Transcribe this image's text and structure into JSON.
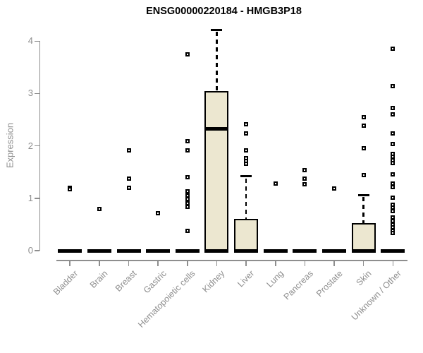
{
  "chart_data": {
    "type": "boxplot",
    "title": "ENSG00000220184 - HMGB3P18",
    "ylabel": "Expression",
    "xlabel": "",
    "ylim": [
      0,
      4.3
    ],
    "yticks": [
      0,
      1,
      2,
      3,
      4
    ],
    "grid": false,
    "legend": "none",
    "categories": [
      "Bladder",
      "Brain",
      "Breast",
      "Gastric",
      "Hematopoietic cells",
      "Kidney",
      "Liver",
      "Lung",
      "Pancreas",
      "Prostate",
      "Skin",
      "Unknown / Other"
    ],
    "boxes": [
      {
        "category": "Bladder",
        "whisker_low": 0,
        "q1": 0,
        "median": 0,
        "q3": 0,
        "whisker_high": 0,
        "outliers": [
          1.2,
          1.17
        ]
      },
      {
        "category": "Brain",
        "whisker_low": 0,
        "q1": 0,
        "median": 0,
        "q3": 0,
        "whisker_high": 0,
        "outliers": [
          0.8
        ]
      },
      {
        "category": "Breast",
        "whisker_low": 0,
        "q1": 0,
        "median": 0,
        "q3": 0,
        "whisker_high": 0,
        "outliers": [
          1.92,
          1.38,
          1.2
        ]
      },
      {
        "category": "Gastric",
        "whisker_low": 0,
        "q1": 0,
        "median": 0,
        "q3": 0,
        "whisker_high": 0,
        "outliers": [
          0.72
        ]
      },
      {
        "category": "Hematopoietic cells",
        "whisker_low": 0,
        "q1": 0,
        "median": 0,
        "q3": 0,
        "whisker_high": 0,
        "outliers": [
          3.75,
          2.09,
          1.91,
          1.4,
          1.13,
          1.05,
          0.98,
          0.9,
          0.84,
          0.38
        ]
      },
      {
        "category": "Kidney",
        "whisker_low": 0,
        "q1": 0,
        "median": 2.33,
        "q3": 3.05,
        "whisker_high": 4.22,
        "outliers": []
      },
      {
        "category": "Liver",
        "whisker_low": 0,
        "q1": 0,
        "median": 0,
        "q3": 0.61,
        "whisker_high": 1.42,
        "outliers": [
          2.41,
          2.24,
          1.92,
          1.77,
          1.71,
          1.66
        ]
      },
      {
        "category": "Lung",
        "whisker_low": 0,
        "q1": 0,
        "median": 0,
        "q3": 0,
        "whisker_high": 0,
        "outliers": [
          1.28
        ]
      },
      {
        "category": "Pancreas",
        "whisker_low": 0,
        "q1": 0,
        "median": 0,
        "q3": 0,
        "whisker_high": 0,
        "outliers": [
          1.54,
          1.38,
          1.27
        ]
      },
      {
        "category": "Prostate",
        "whisker_low": 0,
        "q1": 0,
        "median": 0,
        "q3": 0,
        "whisker_high": 0,
        "outliers": [
          1.19
        ]
      },
      {
        "category": "Skin",
        "whisker_low": 0,
        "q1": 0,
        "median": 0,
        "q3": 0.52,
        "whisker_high": 1.06,
        "outliers": [
          2.55,
          2.39,
          1.96,
          1.44
        ]
      },
      {
        "category": "Unknown / Other",
        "whisker_low": 0,
        "q1": 0,
        "median": 0,
        "q3": 0,
        "whisker_high": 0,
        "outliers": [
          3.85,
          3.14,
          2.73,
          2.6,
          2.24,
          2.04,
          1.85,
          1.79,
          1.73,
          1.67,
          1.45,
          1.28,
          1.22,
          1.01,
          0.88,
          0.82,
          0.76,
          0.63,
          0.57,
          0.5,
          0.44,
          0.38,
          0.34
        ]
      }
    ],
    "colors": {
      "box_fill": "#ece7d0",
      "box_border": "#000000",
      "median": "#000000",
      "outlier": "#000000",
      "axis": "#8e8e8e",
      "tick_label": "#8e8e8e",
      "title": "#000000"
    }
  }
}
